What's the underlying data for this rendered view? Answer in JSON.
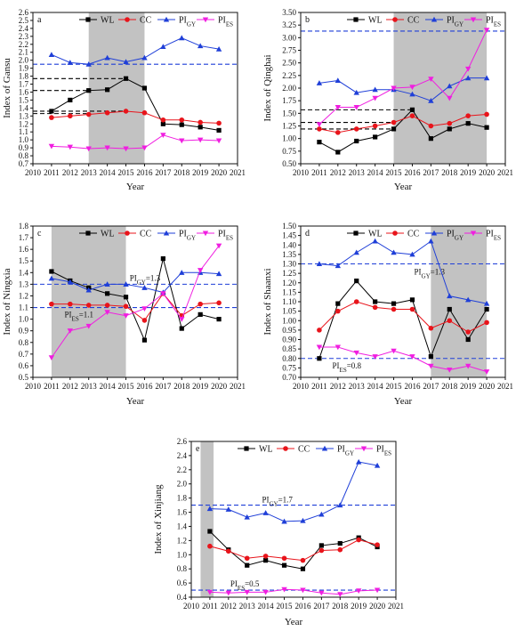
{
  "legend": {
    "WL": {
      "label": "WL",
      "color": "#000000",
      "marker": "square"
    },
    "CC": {
      "label": "CC",
      "color": "#e8141b",
      "marker": "circle"
    },
    "PI_GY": {
      "label": "PI",
      "sub": "GY",
      "color": "#1f3fd8",
      "marker": "triangle-up"
    },
    "PI_ES": {
      "label": "PI",
      "sub": "ES",
      "color": "#f01ee0",
      "marker": "triangle-down"
    }
  },
  "colors": {
    "shade": "#c2c2c2",
    "threshold": "#1f3fd8",
    "black_dash": "#000000"
  },
  "chart_data": [
    {
      "panel": "a",
      "type": "line",
      "xlabel": "Year",
      "ylabel": "Index of Gansu",
      "xlim": [
        2010,
        2021
      ],
      "xticks": [
        2010,
        2011,
        2012,
        2013,
        2014,
        2015,
        2016,
        2017,
        2018,
        2019,
        2020,
        2021
      ],
      "ylim": [
        0.7,
        2.6
      ],
      "yticks": [
        "0.7",
        "0.8",
        "0.9",
        "1.0",
        "1.1",
        "1.2",
        "1.3",
        "1.4",
        "1.5",
        "1.6",
        "1.7",
        "1.8",
        "1.9",
        "2.0",
        "2.1",
        "2.2",
        "2.3",
        "2.4",
        "2.5",
        "2.6"
      ],
      "shaded_years": [
        2013,
        2016
      ],
      "x": [
        2011,
        2012,
        2013,
        2014,
        2015,
        2016,
        2017,
        2018,
        2019,
        2020
      ],
      "series": [
        {
          "key": "WL",
          "values": [
            1.36,
            1.5,
            1.62,
            1.63,
            1.77,
            1.65,
            1.2,
            1.19,
            1.16,
            1.12
          ]
        },
        {
          "key": "CC",
          "values": [
            1.28,
            1.3,
            1.32,
            1.34,
            1.36,
            1.34,
            1.25,
            1.25,
            1.22,
            1.21
          ]
        },
        {
          "key": "PI_GY",
          "values": [
            2.07,
            1.97,
            1.95,
            2.03,
            1.98,
            2.03,
            2.17,
            2.28,
            2.18,
            2.14
          ]
        },
        {
          "key": "PI_ES",
          "values": [
            0.92,
            0.91,
            0.89,
            0.9,
            0.89,
            0.9,
            1.06,
            0.99,
            1.0,
            0.99
          ]
        }
      ],
      "reference_lines": [
        {
          "y": 1.95,
          "color": "blue",
          "extent": "full"
        },
        {
          "y": 1.77,
          "color": "black",
          "extent": "to-2015"
        },
        {
          "y": 1.62,
          "color": "black",
          "extent": "to-2013"
        },
        {
          "y": 1.36,
          "color": "black",
          "extent": "to-2015"
        },
        {
          "y": 1.33,
          "color": "black",
          "extent": "to-2013"
        }
      ],
      "legend_position": "top-right"
    },
    {
      "panel": "b",
      "type": "line",
      "xlabel": "Year",
      "ylabel": "Index of Qinghai",
      "xlim": [
        2010,
        2021
      ],
      "xticks": [
        2010,
        2011,
        2012,
        2013,
        2014,
        2015,
        2016,
        2017,
        2018,
        2019,
        2020,
        2021
      ],
      "ylim": [
        0.5,
        3.5
      ],
      "yticks": [
        "0.50",
        "0.75",
        "1.00",
        "1.25",
        "1.50",
        "1.75",
        "2.00",
        "2.25",
        "2.50",
        "2.75",
        "3.00",
        "3.25",
        "3.50"
      ],
      "shaded_years": [
        2015,
        2020
      ],
      "x": [
        2011,
        2012,
        2013,
        2014,
        2015,
        2016,
        2017,
        2018,
        2019,
        2020
      ],
      "series": [
        {
          "key": "WL",
          "values": [
            0.93,
            0.73,
            0.95,
            1.03,
            1.19,
            1.57,
            1.0,
            1.19,
            1.3,
            1.22
          ]
        },
        {
          "key": "CC",
          "values": [
            1.19,
            1.12,
            1.19,
            1.25,
            1.32,
            1.45,
            1.25,
            1.3,
            1.45,
            1.48
          ]
        },
        {
          "key": "PI_GY",
          "values": [
            2.1,
            2.15,
            1.91,
            1.97,
            1.97,
            1.88,
            1.75,
            2.04,
            2.2,
            2.2
          ]
        },
        {
          "key": "PI_ES",
          "values": [
            1.28,
            1.62,
            1.62,
            1.8,
            2.0,
            2.02,
            2.18,
            1.8,
            2.38,
            3.15
          ]
        }
      ],
      "reference_lines": [
        {
          "y": 3.13,
          "color": "blue",
          "extent": "full"
        },
        {
          "y": 1.57,
          "color": "black",
          "extent": "to-2016"
        },
        {
          "y": 1.32,
          "color": "black",
          "extent": "to-2015"
        },
        {
          "y": 1.19,
          "color": "black",
          "extent": "to-2015"
        }
      ],
      "legend_position": "top"
    },
    {
      "panel": "c",
      "type": "line",
      "xlabel": "Year",
      "ylabel": "Index of Ningxia",
      "xlim": [
        2010,
        2021
      ],
      "xticks": [
        2010,
        2011,
        2012,
        2013,
        2014,
        2015,
        2016,
        2017,
        2018,
        2019,
        2020,
        2021
      ],
      "ylim": [
        0.5,
        1.8
      ],
      "yticks": [
        "0.5",
        "0.6",
        "0.7",
        "0.8",
        "0.9",
        "1.0",
        "1.1",
        "1.2",
        "1.3",
        "1.4",
        "1.5",
        "1.6",
        "1.7",
        "1.8"
      ],
      "shaded_years": [
        2011,
        2015
      ],
      "x": [
        2011,
        2012,
        2013,
        2014,
        2015,
        2016,
        2017,
        2018,
        2019,
        2020
      ],
      "series": [
        {
          "key": "WL",
          "values": [
            1.41,
            1.33,
            1.27,
            1.22,
            1.19,
            0.82,
            1.52,
            0.92,
            1.04,
            1.0
          ]
        },
        {
          "key": "CC",
          "values": [
            1.13,
            1.13,
            1.12,
            1.12,
            1.11,
            0.99,
            1.22,
            1.03,
            1.13,
            1.14
          ]
        },
        {
          "key": "PI_GY",
          "values": [
            1.35,
            1.32,
            1.25,
            1.3,
            1.3,
            1.27,
            1.23,
            1.4,
            1.4,
            1.39
          ]
        },
        {
          "key": "PI_ES",
          "values": [
            0.67,
            0.9,
            0.94,
            1.06,
            1.03,
            1.09,
            1.22,
            1.0,
            1.42,
            1.63
          ]
        }
      ],
      "reference_lines": [
        {
          "y": 1.3,
          "color": "blue",
          "extent": "full",
          "label": "PI",
          "sub": "GY",
          "suffix": "=1.3"
        },
        {
          "y": 1.1,
          "color": "blue",
          "extent": "full",
          "label": "PI",
          "sub": "ES",
          "suffix": "=1.1"
        }
      ],
      "legend_position": "top-right"
    },
    {
      "panel": "d",
      "type": "line",
      "xlabel": "Year",
      "ylabel": "Index of Shaanxi",
      "xlim": [
        2010,
        2021
      ],
      "xticks": [
        2010,
        2011,
        2012,
        2013,
        2014,
        2015,
        2016,
        2017,
        2018,
        2019,
        2020,
        2021
      ],
      "ylim": [
        0.7,
        1.5
      ],
      "yticks": [
        "0.70",
        "0.75",
        "0.80",
        "0.85",
        "0.90",
        "0.95",
        "1.00",
        "1.05",
        "1.10",
        "1.15",
        "1.20",
        "1.25",
        "1.30",
        "1.35",
        "1.40",
        "1.45",
        "1.50"
      ],
      "shaded_years": [
        2017,
        2020
      ],
      "x": [
        2011,
        2012,
        2013,
        2014,
        2015,
        2016,
        2017,
        2018,
        2019,
        2020
      ],
      "series": [
        {
          "key": "WL",
          "values": [
            0.8,
            1.09,
            1.21,
            1.1,
            1.09,
            1.11,
            0.81,
            1.06,
            0.9,
            1.06
          ]
        },
        {
          "key": "CC",
          "values": [
            0.95,
            1.05,
            1.1,
            1.07,
            1.06,
            1.06,
            0.96,
            1.0,
            0.94,
            0.99
          ]
        },
        {
          "key": "PI_GY",
          "values": [
            1.3,
            1.29,
            1.36,
            1.42,
            1.36,
            1.35,
            1.42,
            1.13,
            1.11,
            1.09
          ]
        },
        {
          "key": "PI_ES",
          "values": [
            0.86,
            0.86,
            0.83,
            0.81,
            0.84,
            0.81,
            0.76,
            0.74,
            0.76,
            0.73
          ]
        }
      ],
      "reference_lines": [
        {
          "y": 1.3,
          "color": "blue",
          "extent": "full",
          "label": "PI",
          "sub": "GY",
          "suffix": "=1.3"
        },
        {
          "y": 0.8,
          "color": "blue",
          "extent": "full",
          "label": "PI",
          "sub": "ES",
          "suffix": "=0.8"
        }
      ],
      "legend_position": "top"
    },
    {
      "panel": "e",
      "type": "line",
      "xlabel": "Year",
      "ylabel": "Index of Xinjiang",
      "xlim": [
        2010,
        2021
      ],
      "xticks": [
        2010,
        2011,
        2012,
        2013,
        2014,
        2015,
        2016,
        2017,
        2018,
        2019,
        2020,
        2021
      ],
      "ylim": [
        0.4,
        2.6
      ],
      "yticks": [
        "0.4",
        "0.6",
        "0.8",
        "1.0",
        "1.2",
        "1.4",
        "1.6",
        "1.8",
        "2.0",
        "2.2",
        "2.4",
        "2.6"
      ],
      "shaded_years": [
        2010.5,
        2011.2
      ],
      "x": [
        2011,
        2012,
        2013,
        2014,
        2015,
        2016,
        2017,
        2018,
        2019,
        2020
      ],
      "series": [
        {
          "key": "WL",
          "values": [
            1.33,
            1.07,
            0.85,
            0.92,
            0.85,
            0.8,
            1.13,
            1.16,
            1.24,
            1.11
          ]
        },
        {
          "key": "CC",
          "values": [
            1.12,
            1.05,
            0.95,
            0.98,
            0.95,
            0.92,
            1.06,
            1.07,
            1.21,
            1.14
          ]
        },
        {
          "key": "PI_GY",
          "values": [
            1.65,
            1.64,
            1.53,
            1.59,
            1.47,
            1.48,
            1.57,
            1.7,
            2.31,
            2.26
          ]
        },
        {
          "key": "PI_ES",
          "values": [
            0.47,
            0.46,
            0.47,
            0.47,
            0.51,
            0.5,
            0.46,
            0.44,
            0.49,
            0.5
          ]
        }
      ],
      "reference_lines": [
        {
          "y": 1.7,
          "color": "blue",
          "extent": "full",
          "label": "PI",
          "sub": "GY",
          "suffix": "=1.7"
        },
        {
          "y": 0.5,
          "color": "blue",
          "extent": "full",
          "label": "PI",
          "sub": "ES",
          "suffix": "=0.5"
        }
      ],
      "legend_position": "top"
    }
  ]
}
